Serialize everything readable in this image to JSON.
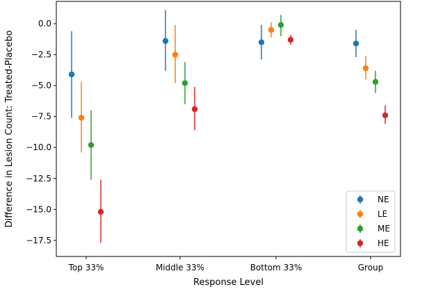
{
  "chart_data": {
    "type": "scatter",
    "title": "",
    "xlabel": "Response Level",
    "ylabel": "Difference in Lesion Count: Treated-Placebo",
    "categories": [
      "Top 33%",
      "Middle 33%",
      "Bottom 33%",
      "Group"
    ],
    "ylim": [
      -18.8,
      1.8
    ],
    "yticks": [
      0.0,
      -2.5,
      -5.0,
      -7.5,
      -10.0,
      -12.5,
      -15.0,
      -17.5
    ],
    "ytick_labels": [
      "0.0",
      "−2.5",
      "−5.0",
      "−7.5",
      "−10.0",
      "−12.5",
      "−15.0",
      "−17.5"
    ],
    "legend_position": "bottom-right",
    "series": [
      {
        "name": "NE",
        "color": "#1f77b4",
        "values": [
          -4.1,
          -1.4,
          -1.5,
          -1.6
        ],
        "lower": [
          -7.6,
          -3.8,
          -2.9,
          -2.7
        ],
        "upper": [
          -0.6,
          1.1,
          -0.1,
          -0.5
        ]
      },
      {
        "name": "LE",
        "color": "#ff7f0e",
        "values": [
          -7.6,
          -2.5,
          -0.5,
          -3.6
        ],
        "lower": [
          -10.4,
          -4.8,
          -1.1,
          -4.5
        ],
        "upper": [
          -4.7,
          -0.1,
          0.1,
          -2.6
        ]
      },
      {
        "name": "ME",
        "color": "#2ca02c",
        "values": [
          -9.8,
          -4.8,
          -0.1,
          -4.7
        ],
        "lower": [
          -12.6,
          -6.5,
          -1.0,
          -5.6
        ],
        "upper": [
          -7.0,
          -3.1,
          0.7,
          -3.8
        ]
      },
      {
        "name": "HE",
        "color": "#d62728",
        "values": [
          -15.2,
          -6.9,
          -1.3,
          -7.4
        ],
        "lower": [
          -17.7,
          -8.6,
          -1.7,
          -8.1
        ],
        "upper": [
          -12.6,
          -5.1,
          -0.9,
          -6.6
        ]
      }
    ]
  }
}
